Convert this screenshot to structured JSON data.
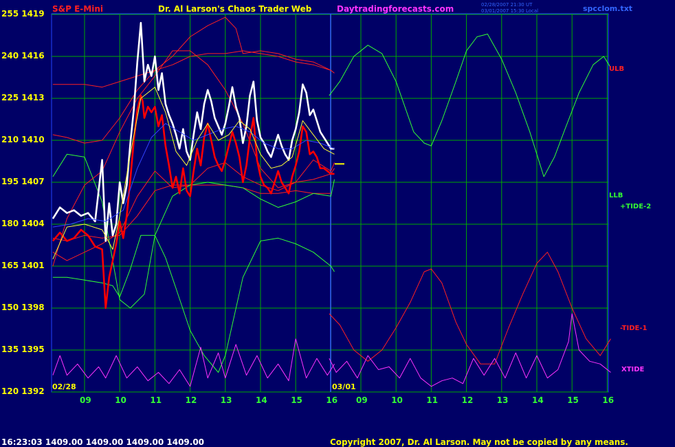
{
  "header": {
    "instrument": "S&P E-Mini",
    "title": "Dr. Al Larson's Chaos Trader Web",
    "site": "Daytradingforecasts.com",
    "timestamp_line1": "02/28/2007 21:30 UT",
    "timestamp_line2": "03/01/2007 15:30 Local",
    "file_name": "spcclom.txt"
  },
  "footer": {
    "quote_line": "16:23:03  1409.00 1409.00 1409.00 1409.00",
    "copyright": "Copyright 2007, Dr. Al Larson. May not be copied by any means."
  },
  "date_labels": {
    "start": "02/28",
    "mid": "03/01"
  },
  "right_labels": {
    "ulb": "ULB",
    "llb": "LLB",
    "tide2": "+TIDE-2",
    "tide1": "-TIDE-1",
    "xtide": "XTIDE"
  },
  "colors": {
    "background": "#000066",
    "grid": "#00aa00",
    "price_high": "#ffffff",
    "price_low": "#ff0000",
    "envelope": "#ff2020",
    "tide2": "#33ff33",
    "tide1": "#ff2020",
    "xtide": "#ff33ff",
    "average": "#3344ff",
    "fast_average": "#ffff33"
  },
  "chart_data": {
    "type": "line",
    "title": "S&P E-Mini",
    "y_left_ticks": [
      "255",
      "240",
      "225",
      "210",
      "195",
      "180",
      "165",
      "150",
      "135",
      "120"
    ],
    "y_right_ticks": [
      "1419",
      "1416",
      "1413",
      "1410",
      "1407",
      "1404",
      "1401",
      "1398",
      "1395",
      "1392"
    ],
    "ylim": [
      1392,
      1419
    ],
    "x_ticks": [
      "09",
      "10",
      "11",
      "12",
      "13",
      "14",
      "15",
      "16",
      "09",
      "10",
      "11",
      "12",
      "13",
      "14",
      "15",
      "16"
    ],
    "day1_start_hour": 8.1,
    "day2_start_hour": 8.1,
    "day_end_hour": 16.1,
    "last_price": 1409.0,
    "series": [
      {
        "kind": "price_high",
        "day": 1,
        "x": [
          8.1,
          8.3,
          8.5,
          8.7,
          8.9,
          9.1,
          9.3,
          9.5,
          9.6,
          9.7,
          9.8,
          9.9,
          10.0,
          10.1,
          10.2,
          10.3,
          10.4,
          10.5,
          10.6,
          10.65,
          10.7,
          10.8,
          10.9,
          11.0,
          11.1,
          11.2,
          11.3,
          11.4,
          11.5,
          11.6,
          11.7,
          11.8,
          11.9,
          12.0,
          12.1,
          12.2,
          12.3,
          12.4,
          12.5,
          12.6,
          12.7,
          12.8,
          12.9,
          13.0,
          13.1,
          13.2,
          13.3,
          13.4,
          13.5,
          13.6,
          13.7,
          13.8,
          13.9,
          14.0,
          14.1,
          14.2,
          14.3,
          14.4,
          14.5,
          14.6,
          14.7,
          14.8,
          14.9,
          15.0,
          15.1,
          15.2,
          15.3,
          15.4,
          15.5,
          15.6,
          15.7,
          15.8,
          15.9,
          16.0,
          16.1
        ],
        "y": [
          1404.4,
          1405.2,
          1404.8,
          1405.0,
          1404.6,
          1404.8,
          1404.2,
          1408.6,
          1402.8,
          1405.5,
          1403.2,
          1404.0,
          1407.0,
          1405.5,
          1406.8,
          1409.8,
          1412.2,
          1415.6,
          1418.4,
          1416.3,
          1414.2,
          1415.4,
          1414.6,
          1416.0,
          1413.6,
          1414.8,
          1412.6,
          1411.8,
          1411.2,
          1410.4,
          1409.4,
          1410.8,
          1409.2,
          1408.6,
          1410.4,
          1412.0,
          1410.8,
          1412.6,
          1413.6,
          1412.8,
          1411.6,
          1411.0,
          1410.4,
          1411.2,
          1412.4,
          1413.8,
          1412.4,
          1411.6,
          1409.8,
          1411.0,
          1413.2,
          1414.2,
          1411.4,
          1410.2,
          1409.8,
          1409.2,
          1408.8,
          1409.6,
          1410.4,
          1409.6,
          1409.0,
          1408.6,
          1410.0,
          1410.8,
          1412.0,
          1414.0,
          1413.4,
          1411.8,
          1412.2,
          1411.4,
          1410.6,
          1410.2,
          1409.8,
          1409.4,
          1409.4
        ]
      },
      {
        "kind": "price_low",
        "day": 1,
        "x": [
          8.1,
          8.3,
          8.5,
          8.7,
          8.9,
          9.1,
          9.3,
          9.5,
          9.6,
          9.7,
          9.8,
          9.9,
          10.0,
          10.1,
          10.2,
          10.3,
          10.4,
          10.5,
          10.6,
          10.65,
          10.7,
          10.8,
          10.9,
          11.0,
          11.1,
          11.2,
          11.3,
          11.4,
          11.5,
          11.6,
          11.7,
          11.8,
          11.9,
          12.0,
          12.1,
          12.2,
          12.3,
          12.4,
          12.5,
          12.6,
          12.7,
          12.8,
          12.9,
          13.0,
          13.1,
          13.2,
          13.3,
          13.4,
          13.5,
          13.6,
          13.7,
          13.8,
          13.9,
          14.0,
          14.1,
          14.2,
          14.3,
          14.4,
          14.5,
          14.6,
          14.7,
          14.8,
          14.9,
          15.0,
          15.1,
          15.2,
          15.3,
          15.4,
          15.5,
          15.6,
          15.7,
          15.8,
          15.9,
          16.0,
          16.1
        ],
        "y": [
          1402.8,
          1403.4,
          1402.8,
          1403.0,
          1403.6,
          1403.2,
          1402.4,
          1402.2,
          1398.0,
          1400.2,
          1401.4,
          1402.6,
          1404.2,
          1403.0,
          1404.6,
          1407.2,
          1410.0,
          1412.2,
          1413.2,
          1412.8,
          1411.6,
          1412.4,
          1412.0,
          1412.4,
          1411.0,
          1411.8,
          1409.6,
          1408.2,
          1406.6,
          1407.4,
          1406.2,
          1408.0,
          1406.4,
          1406.0,
          1407.8,
          1409.4,
          1408.2,
          1410.2,
          1411.2,
          1410.0,
          1408.8,
          1408.2,
          1407.8,
          1408.6,
          1409.6,
          1410.6,
          1409.8,
          1408.8,
          1407.0,
          1408.2,
          1410.2,
          1411.6,
          1408.6,
          1407.4,
          1406.8,
          1406.6,
          1406.2,
          1407.0,
          1407.8,
          1407.0,
          1406.6,
          1406.2,
          1407.4,
          1408.2,
          1409.2,
          1411.0,
          1410.6,
          1409.0,
          1409.2,
          1408.8,
          1408.0,
          1408.0,
          1407.8,
          1407.6,
          1407.6
        ]
      },
      {
        "kind": "fast_average",
        "day": 1,
        "x": [
          8.1,
          8.5,
          9.0,
          9.5,
          9.8,
          10.0,
          10.3,
          10.6,
          11.0,
          11.3,
          11.6,
          11.9,
          12.2,
          12.5,
          12.8,
          13.1,
          13.4,
          13.7,
          14.0,
          14.3,
          14.6,
          14.9,
          15.2,
          15.5,
          15.8,
          16.1
        ],
        "y": [
          1401.5,
          1403.8,
          1404.0,
          1403.6,
          1402.2,
          1404.6,
          1409.0,
          1413.0,
          1413.8,
          1412.0,
          1409.2,
          1408.2,
          1410.0,
          1411.2,
          1410.0,
          1410.4,
          1411.4,
          1410.8,
          1409.0,
          1408.0,
          1408.2,
          1408.8,
          1411.4,
          1410.4,
          1409.4,
          1409.0
        ]
      },
      {
        "kind": "average",
        "day": 1,
        "x": [
          8.1,
          8.6,
          9.1,
          9.6,
          10.1,
          10.5,
          10.9,
          11.3,
          11.7,
          12.1,
          12.5,
          12.9,
          13.3,
          13.7,
          14.1,
          14.5,
          14.9,
          15.3,
          15.7,
          16.1
        ],
        "y": [
          1403.8,
          1404.0,
          1404.4,
          1404.2,
          1405.0,
          1408.0,
          1410.2,
          1411.2,
          1410.6,
          1410.0,
          1410.4,
          1410.8,
          1411.0,
          1410.6,
          1409.8,
          1409.4,
          1409.4,
          1410.0,
          1409.8,
          1409.4
        ]
      },
      {
        "kind": "envelope",
        "day": 1,
        "x": [
          8.1,
          8.5,
          9.0,
          9.5,
          10.0,
          10.5,
          11.0,
          11.5,
          12.0,
          12.5,
          13.0,
          13.3,
          13.5,
          14.0,
          14.5,
          15.0,
          15.5,
          16.0,
          16.1
        ],
        "y": [
          1410.4,
          1410.2,
          1409.8,
          1410.0,
          1411.6,
          1413.6,
          1415.0,
          1416.0,
          1417.4,
          1418.2,
          1418.8,
          1418.0,
          1416.2,
          1416.4,
          1416.2,
          1415.8,
          1415.6,
          1415.0,
          1414.8
        ]
      },
      {
        "kind": "envelope",
        "day": 1,
        "x": [
          8.1,
          8.5,
          9.0,
          9.5,
          10.0,
          10.5,
          11.0,
          11.5,
          12.0,
          12.5,
          13.0,
          13.5,
          14.0,
          14.5,
          15.0,
          15.5,
          16.0
        ],
        "y": [
          1414.0,
          1414.0,
          1414.0,
          1413.8,
          1414.2,
          1414.6,
          1415.0,
          1415.4,
          1416.0,
          1416.2,
          1416.2,
          1416.4,
          1416.2,
          1416.0,
          1415.6,
          1415.4,
          1415.0
        ]
      },
      {
        "kind": "envelope",
        "day": 1,
        "x": [
          8.1,
          8.5,
          9.0,
          9.5,
          10.0,
          10.5,
          11.0,
          11.5,
          12.0,
          12.5,
          13.0,
          13.5,
          14.0,
          14.5,
          15.0,
          15.5,
          16.0,
          16.1
        ],
        "y": [
          1402.0,
          1401.4,
          1402.0,
          1402.6,
          1403.4,
          1406.0,
          1407.8,
          1406.6,
          1406.8,
          1408.0,
          1408.4,
          1407.4,
          1406.8,
          1406.4,
          1407.0,
          1407.2,
          1407.6,
          1408.0
        ]
      },
      {
        "kind": "envelope",
        "day": 1,
        "x": [
          8.1,
          8.5,
          9.0,
          9.5,
          10.0,
          10.5,
          11.0,
          11.5,
          12.0,
          12.5,
          13.0,
          13.5,
          14.0,
          14.5,
          15.0,
          15.5,
          16.0
        ],
        "y": [
          1403.0,
          1402.8,
          1403.2,
          1403.0,
          1403.2,
          1404.6,
          1406.4,
          1406.8,
          1406.8,
          1406.8,
          1406.8,
          1406.6,
          1406.2,
          1406.2,
          1406.4,
          1406.2,
          1406.2
        ]
      },
      {
        "kind": "tide2",
        "day": 1,
        "x": [
          8.1,
          8.5,
          9.0,
          9.5,
          10.0,
          10.3,
          10.7,
          11.0,
          11.5,
          12.0,
          12.5,
          13.0,
          13.5,
          14.0,
          14.5,
          15.0,
          15.5,
          16.0,
          16.1
        ],
        "y": [
          1407.4,
          1409.0,
          1408.8,
          1405.6,
          1398.6,
          1398.0,
          1399.0,
          1403.2,
          1406.0,
          1406.8,
          1407.0,
          1406.8,
          1406.6,
          1405.8,
          1405.2,
          1405.6,
          1406.2,
          1406.0,
          1407.2
        ]
      },
      {
        "kind": "tide2",
        "day": 1,
        "x": [
          8.1,
          8.5,
          9.0,
          9.5,
          9.8,
          10.0,
          10.3,
          10.6,
          11.0,
          11.3,
          11.6,
          12.0,
          12.4,
          12.8,
          13.0,
          13.5,
          14.0,
          14.5,
          15.0,
          15.5,
          16.0,
          16.1
        ],
        "y": [
          1400.2,
          1400.2,
          1400.0,
          1399.8,
          1399.6,
          1398.8,
          1400.8,
          1403.2,
          1403.2,
          1401.6,
          1399.4,
          1396.4,
          1394.6,
          1393.4,
          1394.6,
          1400.2,
          1402.8,
          1403.0,
          1402.6,
          1402.0,
          1401.0,
          1400.6
        ]
      },
      {
        "kind": "tide1",
        "day": 1,
        "x": [
          8.1,
          8.5,
          9.0,
          9.5,
          10.0,
          10.5,
          11.0,
          11.5,
          12.0,
          12.5,
          13.0,
          13.5,
          14.0,
          14.5,
          15.0,
          15.5,
          16.0,
          16.1
        ],
        "y": [
          1401.0,
          1404.4,
          1406.8,
          1407.8,
          1410.6,
          1413.0,
          1414.6,
          1416.4,
          1416.4,
          1415.4,
          1413.6,
          1411.2,
          1408.0,
          1406.6,
          1407.0,
          1408.6,
          1407.8,
          1408.4
        ]
      },
      {
        "kind": "xtide",
        "day": 1,
        "x": [
          8.1,
          8.3,
          8.5,
          8.8,
          9.1,
          9.4,
          9.6,
          9.9,
          10.2,
          10.5,
          10.8,
          11.1,
          11.4,
          11.7,
          12.0,
          12.3,
          12.5,
          12.8,
          13.0,
          13.3,
          13.6,
          13.9,
          14.2,
          14.5,
          14.8,
          15.0,
          15.3,
          15.6,
          15.9,
          16.1
        ],
        "y": [
          1393.2,
          1394.6,
          1393.2,
          1394.0,
          1393.0,
          1393.8,
          1393.0,
          1394.6,
          1393.0,
          1393.8,
          1392.8,
          1393.4,
          1392.6,
          1393.6,
          1392.4,
          1395.2,
          1393.0,
          1394.8,
          1393.0,
          1395.4,
          1393.2,
          1394.6,
          1393.0,
          1394.0,
          1392.8,
          1395.8,
          1393.0,
          1394.4,
          1393.2,
          1394.0
        ]
      },
      {
        "kind": "tide2",
        "day": 2,
        "x": [
          8.1,
          8.4,
          8.8,
          9.2,
          9.6,
          10.0,
          10.5,
          10.8,
          11.0,
          11.3,
          11.7,
          12.0,
          12.3,
          12.6,
          13.0,
          13.4,
          13.8,
          14.2,
          14.5,
          14.8,
          15.2,
          15.6,
          15.9,
          16.1
        ],
        "y": [
          1413.2,
          1414.2,
          1416.0,
          1416.8,
          1416.2,
          1414.2,
          1410.6,
          1409.8,
          1409.6,
          1411.4,
          1414.2,
          1416.4,
          1417.4,
          1417.6,
          1415.8,
          1413.4,
          1410.6,
          1407.4,
          1408.8,
          1410.8,
          1413.4,
          1415.4,
          1416.0,
          1415.2
        ]
      },
      {
        "kind": "tide1",
        "day": 2,
        "x": [
          8.1,
          8.4,
          8.8,
          9.2,
          9.6,
          10.0,
          10.4,
          10.8,
          11.0,
          11.3,
          11.7,
          12.0,
          12.4,
          12.8,
          13.2,
          13.6,
          14.0,
          14.3,
          14.6,
          15.0,
          15.4,
          15.8,
          16.1
        ],
        "y": [
          1397.6,
          1396.8,
          1395.0,
          1394.2,
          1395.0,
          1396.6,
          1398.4,
          1400.6,
          1400.8,
          1399.8,
          1397.0,
          1395.4,
          1394.0,
          1394.0,
          1396.6,
          1399.0,
          1401.2,
          1402.0,
          1400.6,
          1398.0,
          1395.8,
          1394.6,
          1395.8
        ]
      },
      {
        "kind": "xtide",
        "day": 2,
        "x": [
          8.1,
          8.3,
          8.6,
          8.9,
          9.2,
          9.5,
          9.8,
          10.1,
          10.4,
          10.7,
          11.0,
          11.3,
          11.6,
          11.9,
          12.2,
          12.5,
          12.8,
          13.1,
          13.4,
          13.7,
          14.0,
          14.3,
          14.6,
          14.9,
          15.0,
          15.2,
          15.5,
          15.8,
          16.1
        ],
        "y": [
          1394.4,
          1393.4,
          1394.2,
          1393.0,
          1394.6,
          1393.6,
          1393.8,
          1393.0,
          1394.4,
          1393.0,
          1392.4,
          1392.8,
          1393.0,
          1392.6,
          1394.4,
          1393.2,
          1394.4,
          1393.0,
          1394.8,
          1393.0,
          1394.6,
          1393.0,
          1393.6,
          1395.6,
          1397.6,
          1395.0,
          1394.2,
          1394.0,
          1393.4
        ]
      }
    ]
  }
}
